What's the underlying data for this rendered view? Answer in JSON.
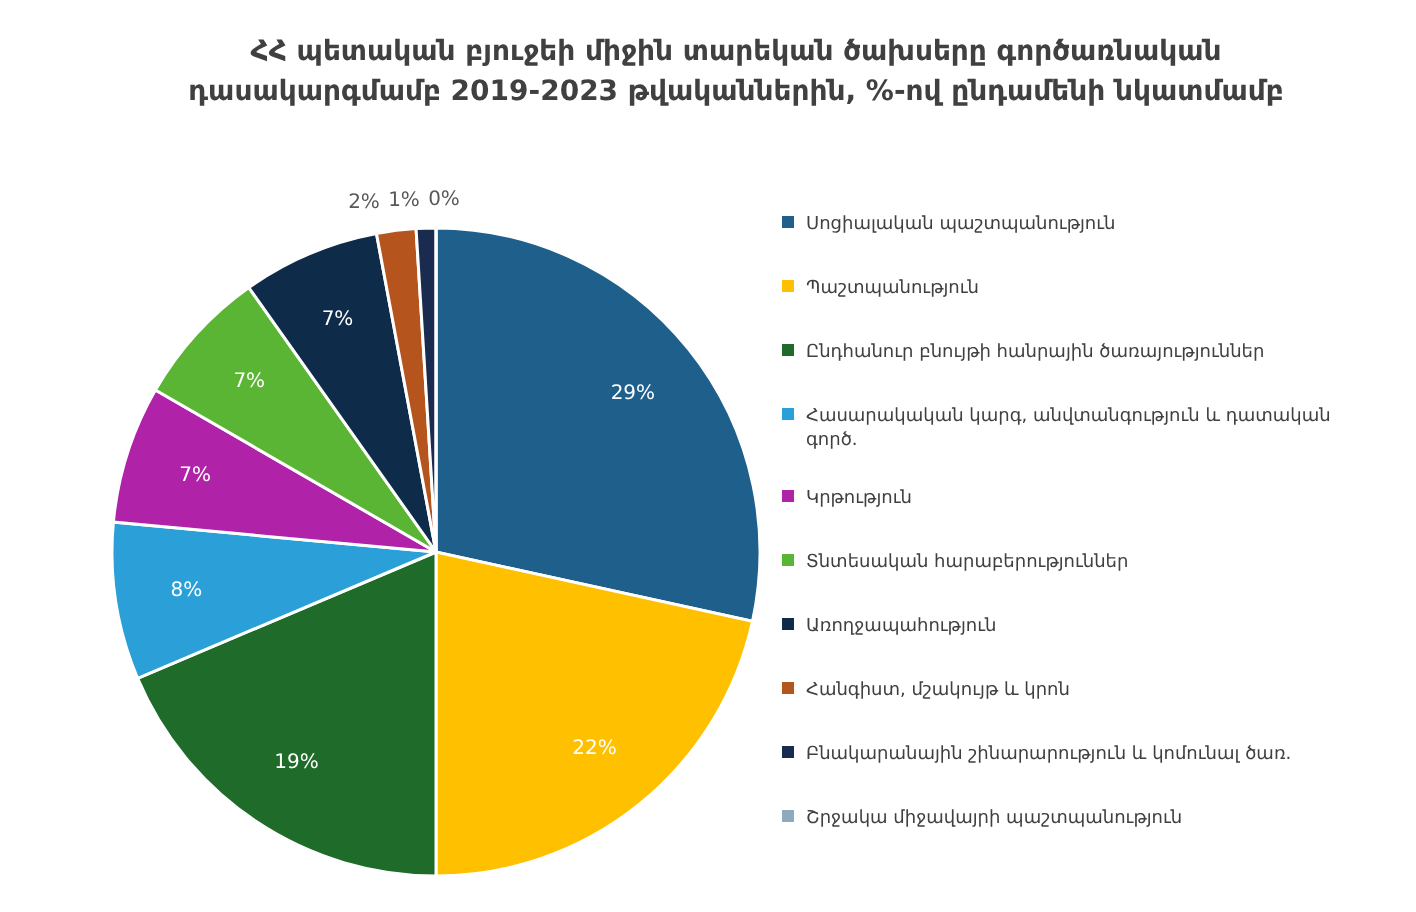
{
  "chart_data": {
    "type": "pie",
    "title": "ՀՀ պետական բյուջեի միջին տարեկան ծախսերը գործառնական դասակարգմամբ 2019-2023 թվականներին, %-ով ընդամենի նկատմամբ",
    "categories": [
      "Սոցիալական պաշտպանություն",
      "Պաշտպանություն",
      "Ընդհանուր բնույթի հանրային ծառայություններ",
      "Հասարակական կարգ, անվտանգություն և դատական գործ.",
      "Կրթություն",
      "Տնտեսական հարաբերություններ",
      "Առողջապահություն",
      "Հանգիստ, մշակույթ և կրոն",
      "Բնակարանային շինարարություն և կոմունալ ծառ.",
      "Շրջակա միջավայրի պաշտպանություն"
    ],
    "values": [
      29,
      22,
      19,
      8,
      7,
      7,
      7,
      2,
      1,
      0
    ],
    "value_labels": [
      "29%",
      "22%",
      "19%",
      "8%",
      "7%",
      "7%",
      "7%",
      "2%",
      "1%",
      "0%"
    ],
    "colors": [
      "#1f5f8b",
      "#ffc000",
      "#1e6b2a",
      "#2a9fd8",
      "#b023a8",
      "#5bb535",
      "#0e2c4a",
      "#b5541c",
      "#1a2b50",
      "#8fa9bd"
    ],
    "legend": "right"
  }
}
